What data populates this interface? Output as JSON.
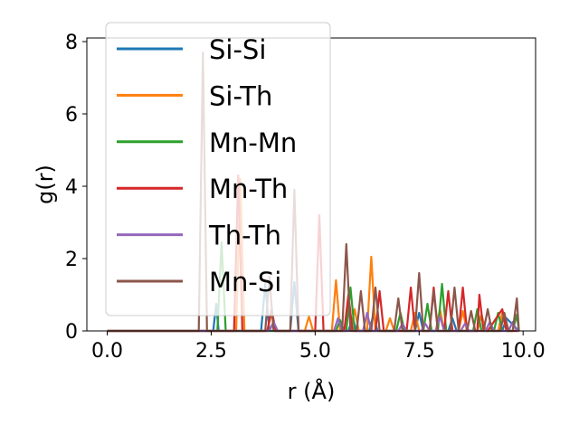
{
  "chart_data": {
    "type": "line",
    "xlabel": "r (Å)",
    "ylabel": "g(r)",
    "xlim": [
      -0.49,
      10.3
    ],
    "ylim": [
      0,
      8.1
    ],
    "xticks": [
      0.0,
      2.5,
      5.0,
      7.5,
      10.0
    ],
    "xtick_labels": [
      "0.0",
      "2.5",
      "5.0",
      "7.5",
      "10.0"
    ],
    "yticks": [
      0,
      2,
      4,
      6,
      8
    ],
    "ytick_labels": [
      "0",
      "2",
      "4",
      "6",
      "8"
    ],
    "grid": false,
    "legend_position": "upper-left",
    "series": [
      {
        "name": "Si-Si",
        "color": "#1f77b4",
        "x": [
          0.0,
          2.55,
          2.62,
          2.68,
          3.7,
          3.8,
          3.9,
          4.4,
          4.5,
          4.6,
          5.8,
          5.9,
          6.0,
          6.3,
          6.4,
          6.5,
          7.4,
          7.5,
          7.6,
          8.2,
          8.3,
          8.4,
          8.9,
          9.0,
          9.1,
          9.5,
          9.6,
          9.9
        ],
        "y": [
          0,
          0,
          0.75,
          0,
          0,
          1.3,
          0,
          0,
          1.35,
          0,
          0,
          0.35,
          0,
          0,
          0.45,
          0,
          0,
          0.5,
          0,
          0,
          0.35,
          0,
          0,
          0.45,
          0,
          0,
          0.35,
          0
        ]
      },
      {
        "name": "Si-Th",
        "color": "#ff7f0e",
        "x": [
          0.0,
          3.1,
          3.2,
          3.3,
          3.85,
          3.95,
          4.05,
          4.75,
          4.85,
          4.95,
          5.4,
          5.5,
          5.6,
          5.85,
          5.95,
          6.05,
          6.25,
          6.35,
          6.45,
          6.7,
          6.8,
          6.9,
          7.3,
          7.4,
          7.5,
          7.9,
          8.0,
          8.1,
          8.45,
          8.55,
          8.65,
          8.9,
          9.0,
          9.1,
          9.4,
          9.5,
          9.6,
          9.9
        ],
        "y": [
          0,
          0,
          4.2,
          0,
          0,
          0.5,
          0,
          0,
          0.4,
          0,
          0,
          1.4,
          0,
          0,
          0.6,
          0,
          0,
          2.05,
          0,
          0,
          0.35,
          0,
          0,
          0.5,
          0,
          0,
          0.6,
          0,
          0,
          0.55,
          0,
          0,
          0.45,
          0,
          0,
          0.5,
          0,
          0
        ]
      },
      {
        "name": "Mn-Mn",
        "color": "#2ca02c",
        "x": [
          0.0,
          2.65,
          2.75,
          2.85,
          5.5,
          5.6,
          5.7,
          5.75,
          5.85,
          5.95,
          6.95,
          7.05,
          7.15,
          7.6,
          7.7,
          7.8,
          7.95,
          8.05,
          8.15,
          8.8,
          8.9,
          9.0,
          9.3,
          9.4,
          9.5,
          9.75,
          9.85,
          9.9
        ],
        "y": [
          0,
          0,
          2.45,
          0,
          0,
          0.3,
          0,
          0,
          1.2,
          0,
          0,
          0.5,
          0,
          0,
          0.75,
          0,
          0,
          1.3,
          0,
          0,
          0.6,
          0,
          0,
          0.5,
          0,
          0,
          0.45,
          0
        ]
      },
      {
        "name": "Mn-Th",
        "color": "#d62728",
        "x": [
          0.0,
          3.05,
          3.15,
          3.25,
          3.85,
          3.95,
          4.05,
          5.0,
          5.1,
          5.2,
          5.7,
          5.8,
          5.9,
          6.45,
          6.55,
          6.65,
          7.2,
          7.3,
          7.4,
          7.75,
          7.85,
          7.95,
          8.1,
          8.2,
          8.3,
          8.45,
          8.55,
          8.65,
          8.8,
          8.9,
          8.95,
          9.05,
          9.15,
          9.5,
          9.6,
          9.7,
          9.9
        ],
        "y": [
          0,
          0,
          4.3,
          0,
          0,
          0.6,
          0,
          0,
          3.2,
          0,
          0,
          1.0,
          0,
          0,
          1.1,
          0,
          0,
          1.2,
          0,
          0,
          1.2,
          0,
          0,
          1.1,
          0,
          0,
          1.2,
          0,
          0,
          0,
          1.0,
          0,
          0,
          0.6,
          0,
          0,
          0
        ]
      },
      {
        "name": "Th-Th",
        "color": "#9467bd",
        "x": [
          0.0,
          3.9,
          4.0,
          4.1,
          5.45,
          5.55,
          5.65,
          6.15,
          6.25,
          6.35,
          7.0,
          7.1,
          7.2,
          7.55,
          7.65,
          7.75,
          7.9,
          8.0,
          8.1,
          8.5,
          8.6,
          8.7,
          9.1,
          9.2,
          9.3,
          9.65,
          9.75,
          9.85,
          9.9
        ],
        "y": [
          0,
          0,
          0.25,
          0,
          0,
          0.35,
          0,
          0,
          0.5,
          0,
          0,
          0.2,
          0,
          0,
          0.2,
          0,
          0,
          0.4,
          0,
          0,
          0.2,
          0,
          0,
          0.25,
          0,
          0,
          0.25,
          0,
          0
        ]
      },
      {
        "name": "Mn-Si",
        "color": "#8c564b",
        "x": [
          0.0,
          2.2,
          2.3,
          2.4,
          3.8,
          3.9,
          4.0,
          4.4,
          4.5,
          4.6,
          5.65,
          5.75,
          5.85,
          6.0,
          6.1,
          6.2,
          6.35,
          6.45,
          6.55,
          6.9,
          7.0,
          7.1,
          7.4,
          7.5,
          7.6,
          7.75,
          7.85,
          7.95,
          8.25,
          8.35,
          8.45,
          8.65,
          8.75,
          8.85,
          9.05,
          9.15,
          9.25,
          9.45,
          9.55,
          9.65,
          9.75,
          9.85,
          9.9
        ],
        "y": [
          0,
          0,
          7.7,
          0,
          0,
          1.5,
          0,
          0,
          3.9,
          0,
          0,
          2.4,
          0,
          0,
          1.1,
          0,
          0,
          1.2,
          0,
          0,
          0.9,
          0,
          0,
          1.6,
          0,
          0,
          1.1,
          0,
          0,
          1.2,
          0,
          0,
          0.55,
          0,
          0,
          0.6,
          0,
          0,
          0.5,
          0,
          0,
          0.9,
          0
        ]
      }
    ]
  }
}
